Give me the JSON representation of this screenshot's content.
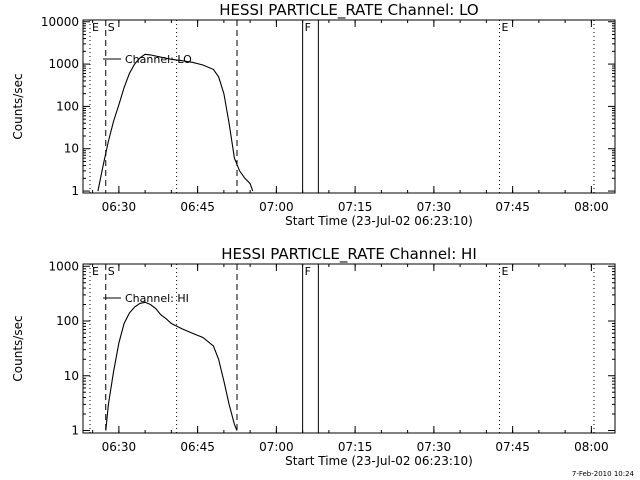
{
  "chart_data": [
    {
      "type": "line",
      "title": "HESSI PARTICLE_RATE Channel: LO",
      "xlabel": "Start Time (23-Jul-02 06:23:10)",
      "ylabel": "Counts/sec",
      "y_scale": "log",
      "ylim": [
        0.9,
        11000
      ],
      "xlim_minutes": [
        6.33,
        25.67,
        0,
        100
      ],
      "xlim": [
        "06:23:10",
        "08:04:30"
      ],
      "x_tick_labels": [
        "06:30",
        "06:45",
        "07:00",
        "07:15",
        "07:30",
        "07:45",
        "08:00"
      ],
      "y_tick_labels": [
        "1",
        "10",
        "100",
        "1000",
        "10000"
      ],
      "legend": {
        "label": "Channel: LO",
        "placement": "top-left"
      },
      "markers": [
        {
          "label": "E",
          "time": "06:24:30",
          "style": "dotted"
        },
        {
          "label": "S",
          "time": "06:27:30",
          "style": "dashed"
        },
        {
          "label": "",
          "time": "06:41:00",
          "style": "dotted"
        },
        {
          "label": "",
          "time": "06:52:30",
          "style": "dashed"
        },
        {
          "label": "F",
          "time": "07:05:00",
          "style": "solid"
        },
        {
          "label": "",
          "time": "07:08:00",
          "style": "solid"
        },
        {
          "label": "E",
          "time": "07:42:30",
          "style": "dotted"
        },
        {
          "label": "",
          "time": "08:00:30",
          "style": "dotted"
        }
      ],
      "series": [
        {
          "name": "Channel: LO",
          "x": [
            "06:26:00",
            "06:27:00",
            "06:28:00",
            "06:29:00",
            "06:30:00",
            "06:31:00",
            "06:32:00",
            "06:33:00",
            "06:34:00",
            "06:35:00",
            "06:36:00",
            "06:38:00",
            "06:40:00",
            "06:42:00",
            "06:44:00",
            "06:46:00",
            "06:48:00",
            "06:49:00",
            "06:50:00",
            "06:51:00",
            "06:52:00",
            "06:53:00",
            "06:54:00",
            "06:55:00",
            "06:55:30"
          ],
          "y": [
            1,
            4,
            15,
            45,
            110,
            280,
            600,
            1000,
            1400,
            1700,
            1650,
            1450,
            1300,
            1200,
            1100,
            950,
            750,
            500,
            200,
            40,
            6,
            3,
            2,
            1.5,
            1
          ]
        }
      ]
    },
    {
      "type": "line",
      "title": "HESSI PARTICLE_RATE Channel: HI",
      "xlabel": "Start Time (23-Jul-02 06:23:10)",
      "ylabel": "Counts/sec",
      "y_scale": "log",
      "ylim": [
        0.9,
        1100
      ],
      "xlim": [
        "06:23:10",
        "08:04:30"
      ],
      "x_tick_labels": [
        "06:30",
        "06:45",
        "07:00",
        "07:15",
        "07:30",
        "07:45",
        "08:00"
      ],
      "y_tick_labels": [
        "1",
        "10",
        "100",
        "1000"
      ],
      "legend": {
        "label": "Channel: HI",
        "placement": "top-left"
      },
      "markers": [
        {
          "label": "E",
          "time": "06:24:30",
          "style": "dotted"
        },
        {
          "label": "S",
          "time": "06:27:30",
          "style": "dashed"
        },
        {
          "label": "",
          "time": "06:41:00",
          "style": "dotted"
        },
        {
          "label": "",
          "time": "06:52:30",
          "style": "dashed"
        },
        {
          "label": "F",
          "time": "07:05:00",
          "style": "solid"
        },
        {
          "label": "",
          "time": "07:08:00",
          "style": "solid"
        },
        {
          "label": "E",
          "time": "07:42:30",
          "style": "dotted"
        },
        {
          "label": "",
          "time": "08:00:30",
          "style": "dotted"
        }
      ],
      "series": [
        {
          "name": "Channel: HI",
          "x": [
            "06:27:30",
            "06:28:00",
            "06:29:00",
            "06:30:00",
            "06:31:00",
            "06:32:00",
            "06:33:00",
            "06:34:00",
            "06:35:00",
            "06:36:00",
            "06:37:00",
            "06:38:00",
            "06:39:00",
            "06:40:00",
            "06:42:00",
            "06:44:00",
            "06:46:00",
            "06:48:00",
            "06:49:00",
            "06:50:00",
            "06:51:00",
            "06:52:00",
            "06:52:30"
          ],
          "y": [
            1,
            3,
            12,
            40,
            90,
            140,
            180,
            210,
            220,
            200,
            170,
            130,
            110,
            90,
            72,
            60,
            50,
            35,
            20,
            8,
            3,
            1.3,
            1
          ]
        }
      ]
    }
  ],
  "footer": {
    "date": "7-Feb-2010 10:24"
  }
}
